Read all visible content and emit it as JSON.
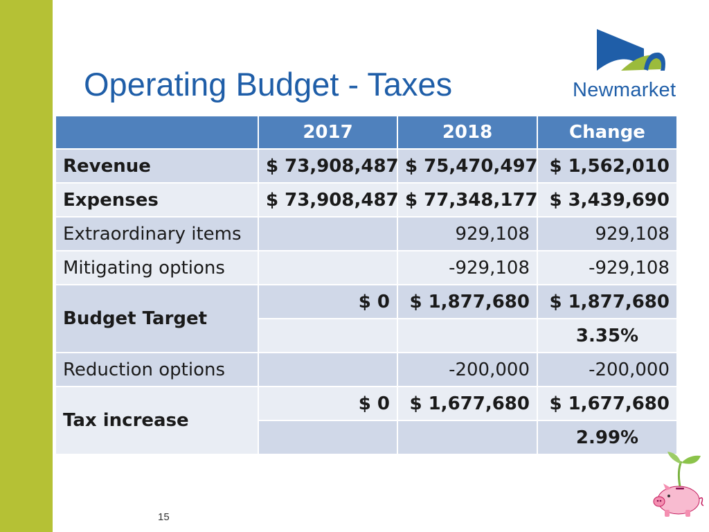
{
  "slide": {
    "title": "Operating Budget - Taxes",
    "page_number": "15",
    "accent_color": "#b5c135",
    "title_color": "#1f5ea8"
  },
  "logo": {
    "text": "Newmarket"
  },
  "table": {
    "headers": [
      "",
      "2017",
      "2018",
      "Change"
    ],
    "rows": {
      "revenue": {
        "label": "Revenue",
        "y2017": "$ 73,908,487",
        "y2018": "$ 75,470,497",
        "change": "$ 1,562,010"
      },
      "expenses": {
        "label": "Expenses",
        "y2017": "$ 73,908,487",
        "y2018": "$ 77,348,177",
        "change": "$ 3,439,690"
      },
      "extraordinary": {
        "label": "Extraordinary items",
        "y2017": "",
        "y2018": "929,108",
        "change": "929,108"
      },
      "mitigating": {
        "label": "Mitigating options",
        "y2017": "",
        "y2018": "-929,108",
        "change": "-929,108"
      },
      "budget_target": {
        "label": "Budget Target",
        "y2017": "$ 0",
        "y2018": "$ 1,877,680",
        "change": "$ 1,877,680",
        "change_pct": "3.35%"
      },
      "reduction": {
        "label": "Reduction options",
        "y2017": "",
        "y2018": "-200,000",
        "change": "-200,000"
      },
      "tax_increase": {
        "label": "Tax increase",
        "y2017": "$ 0",
        "y2018": "$ 1,677,680",
        "change": "$ 1,677,680",
        "change_pct": "2.99%"
      }
    }
  }
}
